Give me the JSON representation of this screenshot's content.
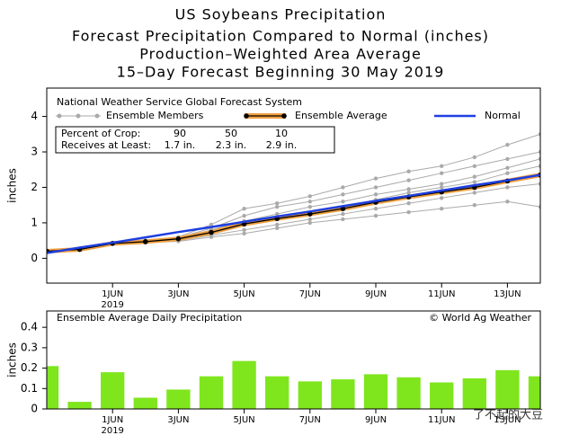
{
  "header": {
    "title": "US Soybeans Precipitation",
    "subtitle_lines": [
      "Forecast Precipitation Compared to Normal (inches)",
      "Production–Weighted Area Average",
      "15–Day Forecast Beginning 30 May 2019"
    ]
  },
  "chart_data": [
    {
      "type": "line",
      "legend_title": "National Weather Service Global Forecast System",
      "ylabel": "inches",
      "x_year_label": "2019",
      "x": [
        "2019-05-30",
        "2019-05-31",
        "2019-06-01",
        "2019-06-02",
        "2019-06-03",
        "2019-06-04",
        "2019-06-05",
        "2019-06-06",
        "2019-06-07",
        "2019-06-08",
        "2019-06-09",
        "2019-06-10",
        "2019-06-11",
        "2019-06-12",
        "2019-06-13",
        "2019-06-14"
      ],
      "xlim": [
        "2019-05-30",
        "2019-06-14"
      ],
      "xticks": [
        {
          "value": "2019-06-01",
          "label": "1JUN"
        },
        {
          "value": "2019-06-03",
          "label": "3JUN"
        },
        {
          "value": "2019-06-05",
          "label": "5JUN"
        },
        {
          "value": "2019-06-07",
          "label": "7JUN"
        },
        {
          "value": "2019-06-09",
          "label": "9JUN"
        },
        {
          "value": "2019-06-11",
          "label": "11JUN"
        },
        {
          "value": "2019-06-13",
          "label": "13JUN"
        }
      ],
      "ylim": [
        -0.7,
        4.8
      ],
      "yticks": [
        0,
        1,
        2,
        3,
        4
      ],
      "member_legend": "Ensemble Members",
      "member_color": "#aaaaaa",
      "members": [
        [
          0.2,
          0.25,
          0.42,
          0.5,
          0.6,
          0.95,
          1.4,
          1.55,
          1.75,
          2.0,
          2.25,
          2.45,
          2.6,
          2.85,
          3.2,
          3.5
        ],
        [
          0.2,
          0.25,
          0.42,
          0.48,
          0.58,
          0.85,
          1.2,
          1.45,
          1.6,
          1.8,
          2.0,
          2.2,
          2.4,
          2.6,
          2.8,
          3.0
        ],
        [
          0.2,
          0.25,
          0.42,
          0.46,
          0.52,
          0.7,
          0.95,
          1.1,
          1.3,
          1.45,
          1.65,
          1.85,
          2.0,
          2.15,
          2.4,
          2.6
        ],
        [
          0.2,
          0.25,
          0.42,
          0.45,
          0.5,
          0.65,
          0.8,
          0.95,
          1.1,
          1.25,
          1.4,
          1.55,
          1.7,
          1.85,
          2.0,
          2.1
        ],
        [
          0.2,
          0.25,
          0.42,
          0.44,
          0.48,
          0.6,
          0.7,
          0.85,
          1.0,
          1.1,
          1.2,
          1.3,
          1.4,
          1.5,
          1.6,
          1.45
        ],
        [
          0.2,
          0.25,
          0.42,
          0.47,
          0.55,
          0.8,
          1.05,
          1.25,
          1.45,
          1.6,
          1.8,
          1.95,
          2.1,
          2.3,
          2.55,
          2.8
        ]
      ],
      "series": [
        {
          "name": "Ensemble Average",
          "color": "#000000",
          "halo_color": "#f0a040",
          "markers": true,
          "values": [
            0.2,
            0.25,
            0.42,
            0.47,
            0.55,
            0.73,
            0.97,
            1.12,
            1.25,
            1.4,
            1.58,
            1.73,
            1.87,
            2.0,
            2.18,
            2.35
          ]
        },
        {
          "name": "Normal",
          "color": "#1e3fe0",
          "markers": false,
          "values": [
            0.15,
            0.3,
            0.44,
            0.59,
            0.74,
            0.88,
            1.03,
            1.18,
            1.32,
            1.47,
            1.62,
            1.76,
            1.91,
            2.06,
            2.2,
            2.35
          ]
        }
      ],
      "crop_table": {
        "rows": [
          [
            "Percent of Crop:",
            "90",
            "50",
            "10"
          ],
          [
            "Receives at Least:",
            "1.7 in.",
            "2.3 in.",
            "2.9 in."
          ]
        ]
      }
    },
    {
      "type": "bar",
      "title": "Ensemble Average Daily Precipitation",
      "credit": "© World Ag Weather",
      "ylabel": "inches",
      "x_year_label": "2019",
      "color": "#7fe61e",
      "x": [
        "2019-05-30",
        "2019-05-31",
        "2019-06-01",
        "2019-06-02",
        "2019-06-03",
        "2019-06-04",
        "2019-06-05",
        "2019-06-06",
        "2019-06-07",
        "2019-06-08",
        "2019-06-09",
        "2019-06-10",
        "2019-06-11",
        "2019-06-12",
        "2019-06-13",
        "2019-06-14"
      ],
      "xlim": [
        "2019-05-30",
        "2019-06-14"
      ],
      "xticks": [
        {
          "value": "2019-06-01",
          "label": "1JUN"
        },
        {
          "value": "2019-06-03",
          "label": "3JUN"
        },
        {
          "value": "2019-06-05",
          "label": "5JUN"
        },
        {
          "value": "2019-06-07",
          "label": "7JUN"
        },
        {
          "value": "2019-06-09",
          "label": "9JUN"
        },
        {
          "value": "2019-06-11",
          "label": "11JUN"
        },
        {
          "value": "2019-06-13",
          "label": "13JUN"
        }
      ],
      "ylim": [
        0,
        0.48
      ],
      "yticks": [
        0,
        0.1,
        0.2,
        0.3,
        0.4
      ],
      "values": [
        0.21,
        0.035,
        0.18,
        0.055,
        0.095,
        0.16,
        0.235,
        0.16,
        0.135,
        0.145,
        0.17,
        0.155,
        0.13,
        0.15,
        0.19,
        0.16
      ]
    }
  ],
  "watermark": "了不起的大豆"
}
